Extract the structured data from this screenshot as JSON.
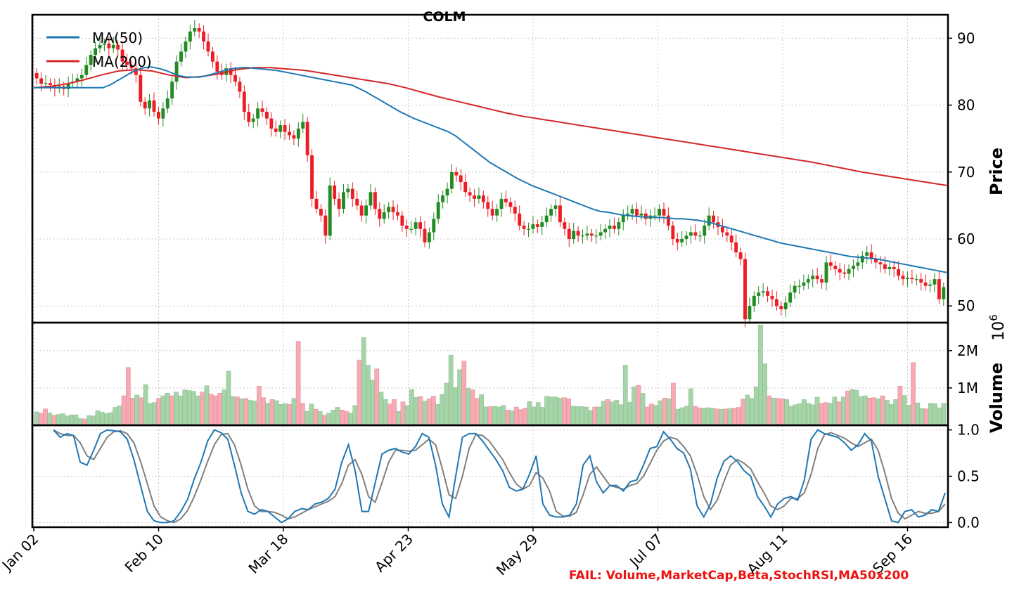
{
  "chart_data": {
    "type": "candlestick",
    "title": "COLM",
    "ticker": "COLM",
    "x_tick_labels": [
      "Jan 02",
      "Feb 10",
      "Mar 18",
      "Apr 23",
      "May 29",
      "Jul 07",
      "Aug 11",
      "Sep 16"
    ],
    "colors": {
      "up": "#228b22",
      "down": "#ee1c25",
      "ma50": "#1f77b4",
      "ma200": "#d62728",
      "stoch_k": "#1f77b4",
      "stoch_d": "#808080"
    },
    "price_panel": {
      "ylabel": "Price",
      "ylim": [
        47.5,
        93.5
      ],
      "yticks": [
        50,
        60,
        70,
        80,
        90
      ],
      "ytick_labels": [
        "50",
        "60",
        "70",
        "80",
        "90"
      ],
      "legend": {
        "placement": "upper-left",
        "entries": [
          "MA(50)",
          "MA(200)"
        ]
      },
      "close": [
        84.0,
        83.2,
        83.3,
        83.0,
        82.5,
        82.8,
        82.4,
        83.3,
        83.5,
        84.0,
        84.5,
        86.0,
        87.5,
        88.5,
        89.0,
        89.2,
        88.5,
        89.0,
        88.3,
        86.5,
        86.0,
        85.5,
        84.5,
        80.5,
        79.5,
        80.7,
        79.0,
        78.0,
        79.5,
        81.0,
        83.5,
        86.5,
        88.0,
        89.5,
        91.0,
        91.5,
        91.0,
        89.5,
        88.0,
        86.5,
        85.0,
        84.5,
        85.5,
        84.5,
        83.5,
        82.0,
        79.0,
        77.5,
        78.0,
        79.5,
        79.0,
        78.0,
        76.5,
        76.0,
        77.0,
        76.0,
        75.5,
        75.0,
        76.5,
        77.5,
        72.5,
        66.0,
        64.5,
        63.5,
        60.5,
        68.0,
        66.0,
        64.5,
        67.0,
        67.5,
        66.0,
        65.0,
        63.5,
        65.0,
        67.0,
        64.5,
        63.0,
        64.0,
        64.8,
        64.0,
        63.5,
        62.0,
        61.5,
        61.5,
        62.5,
        61.5,
        59.5,
        61.0,
        63.0,
        65.5,
        66.5,
        67.5,
        70.0,
        69.5,
        68.5,
        67.0,
        66.5,
        66.0,
        66.5,
        65.5,
        64.5,
        63.5,
        64.5,
        66.0,
        65.5,
        64.8,
        63.8,
        62.0,
        61.5,
        61.5,
        62.2,
        61.8,
        62.5,
        63.5,
        64.5,
        65.0,
        62.5,
        61.5,
        60.0,
        61.2,
        60.5,
        60.5,
        60.8,
        60.5,
        60.5,
        61.0,
        61.5,
        62.0,
        61.5,
        62.5,
        63.5,
        63.8,
        64.5,
        63.5,
        63.8,
        63.0,
        63.5,
        63.5,
        64.5,
        63.5,
        62.0,
        60.0,
        59.5,
        60.0,
        60.5,
        61.0,
        60.5,
        60.5,
        62.0,
        63.5,
        62.5,
        61.8,
        61.0,
        60.5,
        59.5,
        58.0,
        57.0,
        48.0,
        50.0,
        51.5,
        52.0,
        52.2,
        51.5,
        51.0,
        50.0,
        49.5,
        50.5,
        52.0,
        53.0,
        53.0,
        53.5,
        54.0,
        54.5,
        54.0,
        53.5,
        56.5,
        56.0,
        55.5,
        55.0,
        54.8,
        55.5,
        56.0,
        56.5,
        57.5,
        58.0,
        57.0,
        56.5,
        56.2,
        55.5,
        55.8,
        55.5,
        54.5,
        54.0,
        54.2,
        54.0,
        54.0,
        53.5,
        53.0,
        53.2,
        54.0,
        51.0,
        52.8
      ],
      "ma50": [
        82.6,
        82.6,
        82.6,
        82.6,
        82.6,
        82.6,
        82.6,
        82.6,
        82.6,
        82.6,
        82.6,
        83.0,
        83.6,
        84.2,
        84.8,
        85.3,
        85.6,
        85.7,
        85.5,
        85.2,
        84.8,
        84.4,
        84.2,
        84.2,
        84.2,
        84.4,
        84.7,
        85.0,
        85.3,
        85.5,
        85.6,
        85.6,
        85.5,
        85.4,
        85.3,
        85.2,
        85.0,
        84.8,
        84.6,
        84.4,
        84.2,
        84.0,
        83.8,
        83.6,
        83.4,
        83.2,
        83.0,
        82.5,
        82.0,
        81.4,
        80.8,
        80.2,
        79.6,
        79.0,
        78.5,
        78.0,
        77.6,
        77.2,
        76.8,
        76.4,
        76.0,
        75.4,
        74.6,
        73.8,
        73.0,
        72.2,
        71.4,
        70.8,
        70.2,
        69.6,
        69.0,
        68.5,
        68.0,
        67.6,
        67.2,
        66.8,
        66.4,
        66.0,
        65.6,
        65.2,
        64.8,
        64.4,
        64.1,
        64.0,
        63.8,
        63.6,
        63.5,
        63.4,
        63.3,
        63.3,
        63.2,
        63.2,
        63.1,
        63.0,
        63.0,
        62.9,
        62.8,
        62.6,
        62.4,
        62.1,
        61.8,
        61.5,
        61.2,
        60.9,
        60.6,
        60.3,
        60.0,
        59.7,
        59.4,
        59.2,
        59.0,
        58.8,
        58.6,
        58.4,
        58.2,
        58.0,
        57.8,
        57.6,
        57.4,
        57.3,
        57.2,
        57.1,
        57.0,
        56.8,
        56.6,
        56.4,
        56.2,
        56.0,
        55.8,
        55.6,
        55.4,
        55.2,
        55.0
      ],
      "ma200": [
        82.6,
        82.8,
        83.2,
        83.8,
        84.5,
        85.1,
        85.3,
        85.1,
        84.5,
        84.1,
        84.3,
        84.7,
        85.3,
        85.6,
        85.6,
        85.4,
        85.2,
        84.8,
        84.4,
        84.0,
        83.6,
        83.2,
        82.6,
        81.9,
        81.2,
        80.6,
        80.0,
        79.4,
        78.8,
        78.3,
        77.9,
        77.5,
        77.1,
        76.7,
        76.3,
        75.9,
        75.5,
        75.1,
        74.7,
        74.3,
        73.9,
        73.5,
        73.1,
        72.7,
        72.3,
        71.9,
        71.5,
        71.0,
        70.5,
        70.0,
        69.6,
        69.2,
        68.8,
        68.4,
        68.0
      ],
      "ma200_label_note": ""
    },
    "volume_panel": {
      "ylabel": "Volume",
      "scale_label": "10^6",
      "ylim": [
        0,
        2.75
      ],
      "yticks": [
        1,
        2
      ],
      "ytick_labels": [
        "1M",
        "2M"
      ],
      "values_millions": [
        0.36,
        0.32,
        0.44,
        0.33,
        0.27,
        0.29,
        0.31,
        0.25,
        0.28,
        0.28,
        0.18,
        0.17,
        0.26,
        0.25,
        0.39,
        0.35,
        0.31,
        0.34,
        0.48,
        0.52,
        0.79,
        1.55,
        0.73,
        0.81,
        0.74,
        1.09,
        0.59,
        0.61,
        0.72,
        0.79,
        0.86,
        0.79,
        0.89,
        0.79,
        0.95,
        0.93,
        0.91,
        0.79,
        0.89,
        1.06,
        0.83,
        0.79,
        0.86,
        0.95,
        1.45,
        0.77,
        0.76,
        0.71,
        0.72,
        0.67,
        0.65,
        1.05,
        0.74,
        0.59,
        0.69,
        0.66,
        0.56,
        0.58,
        0.56,
        0.72,
        2.25,
        0.59,
        0.37,
        0.57,
        0.43,
        0.37,
        0.27,
        0.33,
        0.41,
        0.48,
        0.41,
        0.37,
        0.33,
        0.53,
        1.75,
        2.35,
        1.61,
        1.21,
        1.51,
        0.89,
        0.69,
        0.57,
        0.69,
        0.37,
        0.63,
        0.53,
        0.96,
        0.75,
        0.77,
        0.65,
        0.71,
        0.78,
        0.56,
        0.83,
        1.13,
        1.88,
        1.01,
        1.49,
        1.72,
        0.99,
        0.95,
        0.72,
        0.82,
        0.49,
        0.5,
        0.51,
        0.49,
        0.53,
        0.41,
        0.39,
        0.49,
        0.42,
        0.46,
        0.64,
        0.49,
        0.61,
        0.48,
        0.78,
        0.76,
        0.76,
        0.73,
        0.74,
        0.71,
        0.51,
        0.5,
        0.5,
        0.49,
        0.4,
        0.49,
        0.49,
        0.65,
        0.69,
        0.63,
        0.67,
        0.55,
        1.61,
        0.62,
        1.03,
        1.07,
        0.86,
        0.49,
        0.57,
        0.53,
        0.66,
        0.73,
        0.71,
        1.13,
        0.43,
        0.47,
        0.51,
        0.98,
        0.51,
        0.47,
        0.46,
        0.47,
        0.46,
        0.44,
        0.43,
        0.44,
        0.45,
        0.46,
        0.48,
        0.7,
        0.81,
        0.72,
        1.03,
        2.69,
        1.65,
        0.79,
        0.73,
        0.72,
        0.71,
        0.69,
        0.51,
        0.55,
        0.58,
        0.69,
        0.59,
        0.55,
        0.75,
        0.59,
        0.61,
        0.59,
        0.76,
        0.63,
        0.76,
        0.92,
        0.96,
        0.94,
        0.77,
        0.79,
        0.73,
        0.74,
        0.71,
        0.79,
        0.67,
        0.56,
        0.69,
        1.05,
        0.8,
        0.54,
        1.68,
        0.6,
        0.45,
        0.44,
        0.59,
        0.58,
        0.47,
        0.59
      ]
    },
    "stoch_panel": {
      "ylim": [
        -0.05,
        1.05
      ],
      "yticks": [
        0.0,
        0.5,
        1.0
      ],
      "ytick_labels": [
        "0.0",
        "0.5",
        "1.0"
      ],
      "k": [
        1.0,
        0.92,
        0.96,
        0.94,
        0.65,
        0.62,
        0.78,
        0.96,
        1.0,
        0.99,
        0.98,
        0.9,
        0.68,
        0.4,
        0.12,
        0.02,
        0.0,
        0.0,
        0.02,
        0.12,
        0.25,
        0.47,
        0.65,
        0.88,
        1.0,
        0.97,
        0.9,
        0.62,
        0.32,
        0.12,
        0.09,
        0.14,
        0.12,
        0.06,
        0.0,
        0.04,
        0.12,
        0.15,
        0.14,
        0.2,
        0.22,
        0.26,
        0.36,
        0.65,
        0.84,
        0.56,
        0.12,
        0.12,
        0.43,
        0.74,
        0.78,
        0.8,
        0.76,
        0.74,
        0.82,
        0.96,
        0.92,
        0.62,
        0.2,
        0.06,
        0.5,
        0.92,
        0.96,
        0.96,
        0.88,
        0.78,
        0.68,
        0.56,
        0.38,
        0.34,
        0.36,
        0.52,
        0.72,
        0.2,
        0.08,
        0.06,
        0.06,
        0.08,
        0.2,
        0.62,
        0.72,
        0.44,
        0.32,
        0.4,
        0.4,
        0.34,
        0.44,
        0.46,
        0.62,
        0.8,
        0.82,
        0.98,
        0.9,
        0.8,
        0.75,
        0.58,
        0.18,
        0.06,
        0.2,
        0.48,
        0.66,
        0.72,
        0.66,
        0.56,
        0.5,
        0.28,
        0.18,
        0.06,
        0.2,
        0.26,
        0.28,
        0.24,
        0.46,
        0.9,
        1.0,
        0.96,
        0.94,
        0.92,
        0.86,
        0.78,
        0.84,
        0.96,
        0.88,
        0.5,
        0.26,
        0.02,
        0.0,
        0.12,
        0.14,
        0.06,
        0.08,
        0.14,
        0.12,
        0.32
      ],
      "d": [
        1.0,
        0.96,
        0.94,
        0.94,
        0.86,
        0.72,
        0.68,
        0.8,
        0.92,
        0.98,
        0.99,
        0.96,
        0.86,
        0.66,
        0.42,
        0.18,
        0.06,
        0.02,
        0.0,
        0.04,
        0.13,
        0.28,
        0.46,
        0.66,
        0.84,
        0.95,
        0.96,
        0.84,
        0.62,
        0.36,
        0.18,
        0.12,
        0.12,
        0.11,
        0.08,
        0.04,
        0.06,
        0.1,
        0.14,
        0.17,
        0.2,
        0.23,
        0.28,
        0.42,
        0.62,
        0.68,
        0.52,
        0.28,
        0.22,
        0.43,
        0.65,
        0.78,
        0.78,
        0.77,
        0.78,
        0.84,
        0.9,
        0.84,
        0.58,
        0.3,
        0.26,
        0.5,
        0.8,
        0.95,
        0.94,
        0.88,
        0.78,
        0.68,
        0.54,
        0.42,
        0.36,
        0.4,
        0.54,
        0.48,
        0.34,
        0.12,
        0.07,
        0.07,
        0.11,
        0.3,
        0.52,
        0.6,
        0.5,
        0.4,
        0.38,
        0.36,
        0.4,
        0.42,
        0.5,
        0.64,
        0.78,
        0.88,
        0.92,
        0.9,
        0.82,
        0.72,
        0.52,
        0.28,
        0.14,
        0.24,
        0.44,
        0.62,
        0.68,
        0.64,
        0.58,
        0.44,
        0.32,
        0.18,
        0.14,
        0.18,
        0.26,
        0.26,
        0.32,
        0.52,
        0.8,
        0.95,
        0.97,
        0.94,
        0.91,
        0.86,
        0.82,
        0.86,
        0.9,
        0.78,
        0.54,
        0.26,
        0.1,
        0.04,
        0.08,
        0.12,
        0.1,
        0.1,
        0.12,
        0.2
      ]
    },
    "grid": true,
    "status_text": "FAIL: Volume,MarketCap,Beta,StochRSI,MA50x200"
  }
}
